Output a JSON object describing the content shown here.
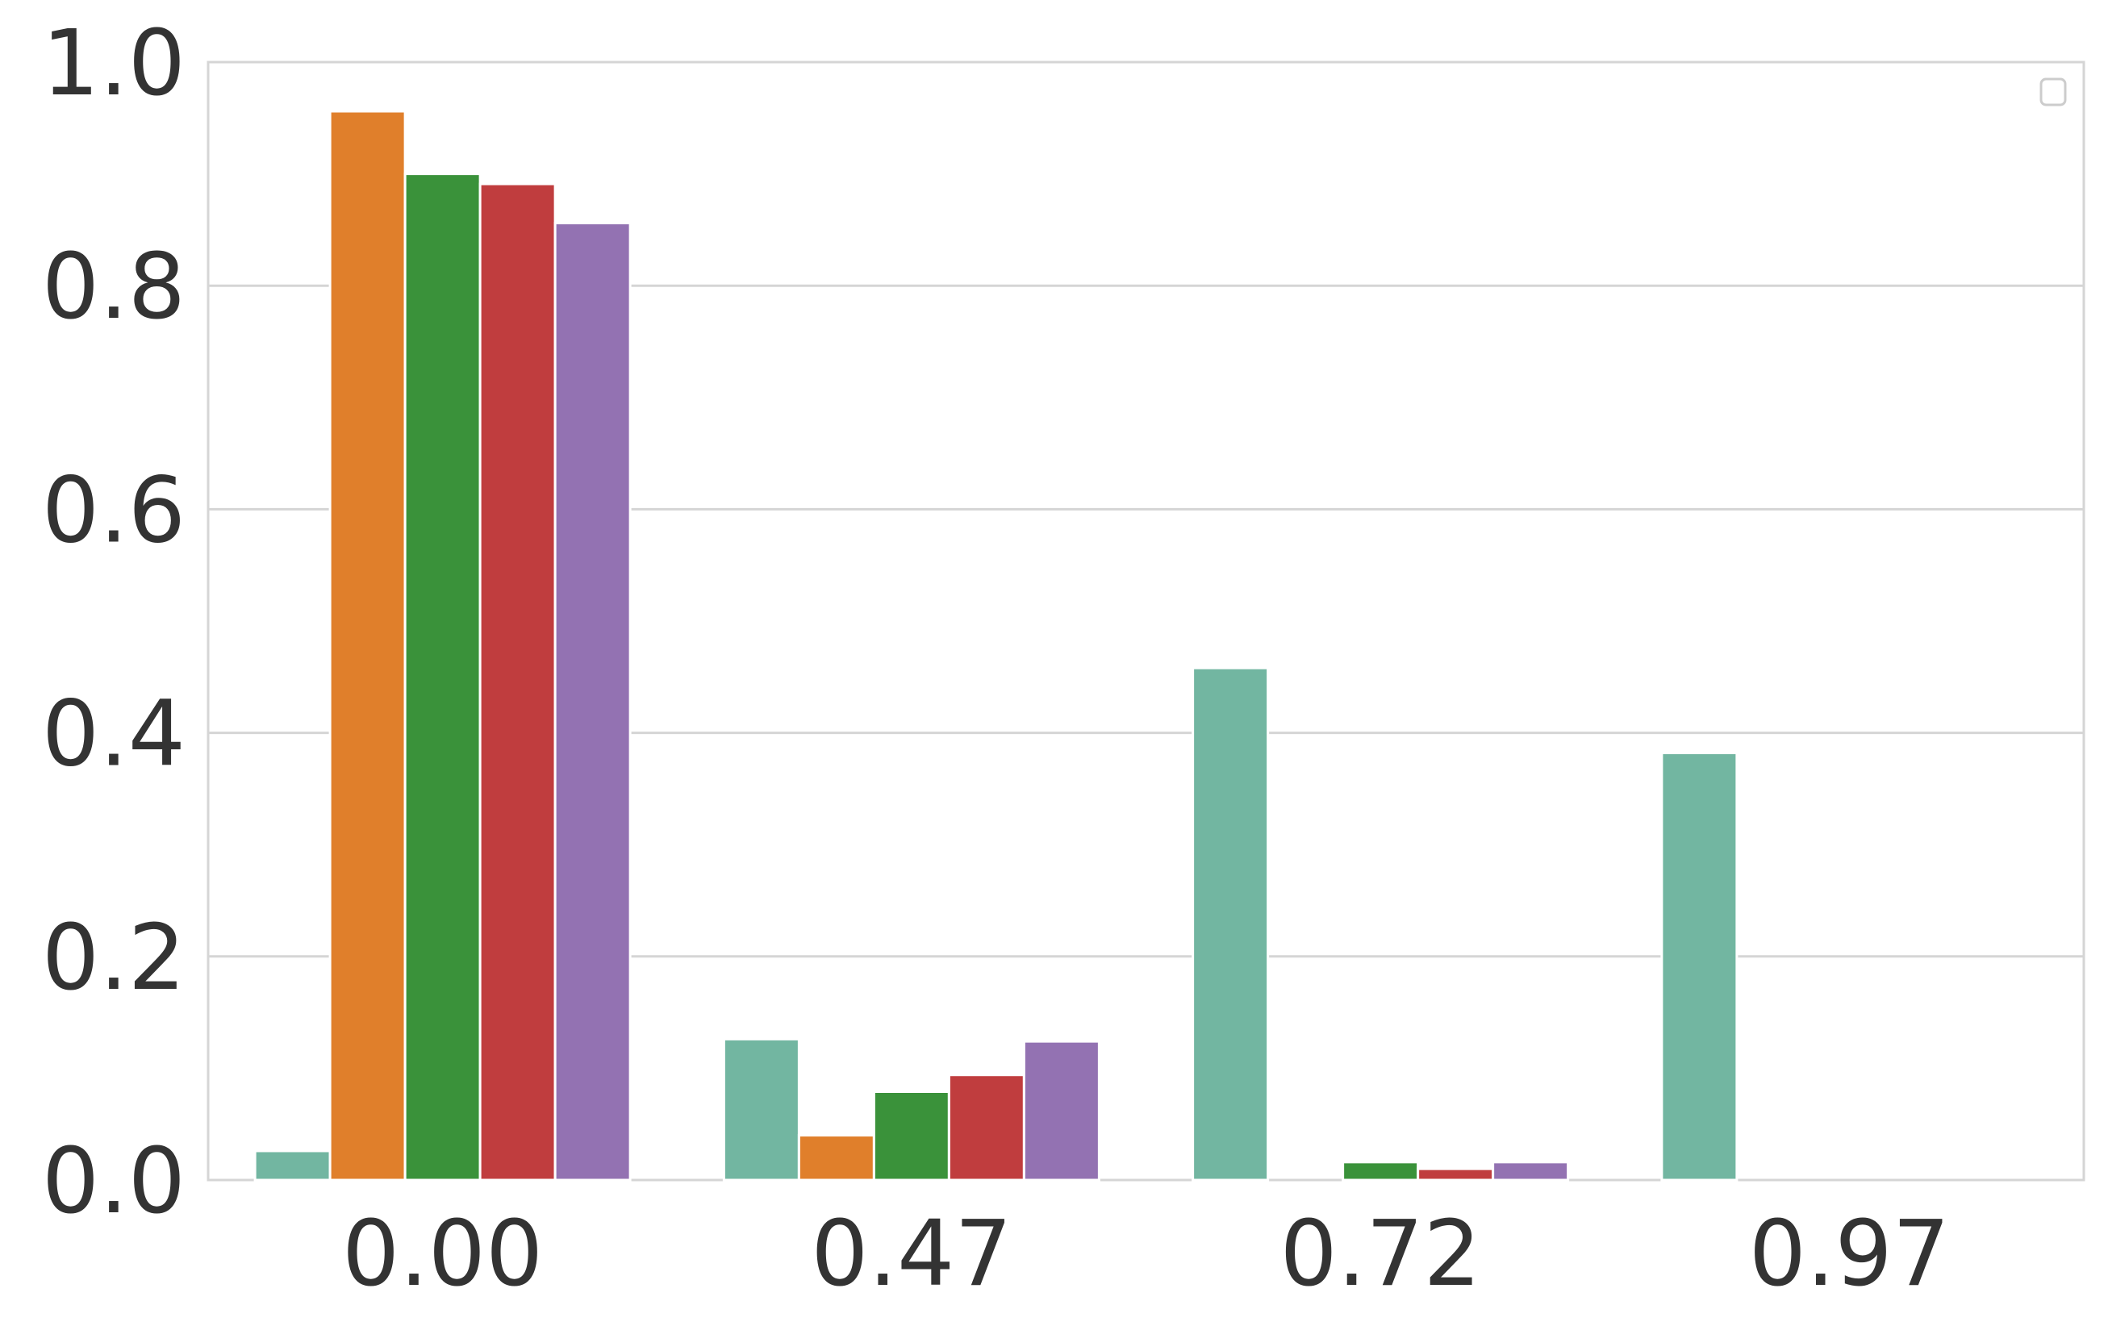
{
  "chart_data": {
    "type": "bar",
    "categories": [
      "0.00",
      "0.47",
      "0.72",
      "0.97"
    ],
    "series": [
      {
        "color": "#72b6a1",
        "values": [
          0.026,
          0.126,
          0.458,
          0.382
        ]
      },
      {
        "color": "#e07f2b",
        "values": [
          0.956,
          0.04,
          0,
          0
        ]
      },
      {
        "color": "#3a923a",
        "values": [
          0.9,
          0.079,
          0.016,
          0
        ]
      },
      {
        "color": "#c03d3e",
        "values": [
          0.891,
          0.094,
          0.01,
          0
        ]
      },
      {
        "color": "#9372b2",
        "values": [
          0.856,
          0.124,
          0.016,
          0
        ]
      }
    ],
    "ylim": [
      0,
      1
    ],
    "yticks": [
      {
        "value": 0,
        "label": "0.0"
      },
      0.2,
      0.4,
      0.6,
      0.8,
      {
        "value": 1,
        "label": "1.0"
      }
    ],
    "grid": true
  }
}
